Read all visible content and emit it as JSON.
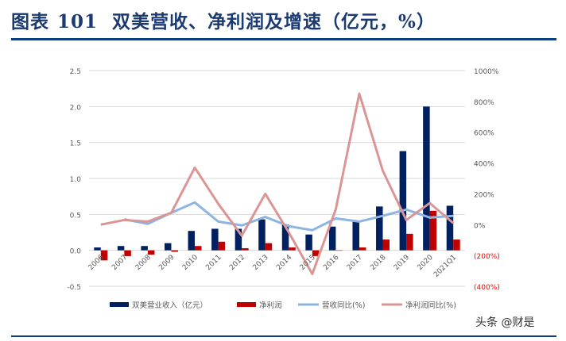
{
  "header": {
    "title_prefix": "图表",
    "title_number": "101",
    "title_text": "双美营收、净利润及增速（亿元，%）"
  },
  "watermark": "头条 @财是",
  "colors": {
    "revenue": "#002060",
    "profit": "#c00000",
    "revenue_growth": "#8db4e2",
    "profit_growth": "#d99694",
    "title": "#1b3a70",
    "negative_tick": "#ff0000"
  },
  "chart_data": {
    "type": "bar+line",
    "categories": [
      "2006",
      "2007",
      "2008",
      "2009",
      "2010",
      "2011",
      "2012",
      "2013",
      "2014",
      "2015",
      "2016",
      "2017",
      "2018",
      "2019",
      "2020",
      "2021Q1"
    ],
    "left_axis": {
      "ylim": [
        -0.5,
        2.5
      ],
      "ticks": [
        "2.5",
        "2.0",
        "1.5",
        "1.0",
        "0.5",
        "0.0",
        "-0.5"
      ],
      "tick_values": [
        2.5,
        2.0,
        1.5,
        1.0,
        0.5,
        0.0,
        -0.5
      ]
    },
    "right_axis": {
      "ylim": [
        -400,
        1000
      ],
      "ticks": [
        "1000%",
        "800%",
        "600%",
        "400%",
        "200%",
        "0%",
        "(200%)",
        "(400%)"
      ],
      "tick_values": [
        1000,
        800,
        600,
        400,
        200,
        0,
        -200,
        -400
      ]
    },
    "series": [
      {
        "name": "双美营业收入（亿元）",
        "type": "bar",
        "axis": "left",
        "values": [
          0.04,
          0.06,
          0.06,
          0.1,
          0.27,
          0.3,
          0.3,
          0.43,
          0.36,
          0.22,
          0.33,
          0.4,
          0.61,
          1.38,
          2.0,
          0.62
        ]
      },
      {
        "name": "净利润",
        "type": "bar",
        "axis": "left",
        "values": [
          -0.14,
          -0.08,
          -0.06,
          -0.02,
          0.06,
          0.12,
          0.03,
          0.1,
          0.04,
          -0.08,
          0.0,
          0.04,
          0.15,
          0.23,
          0.55,
          0.15
        ]
      },
      {
        "name": "营收同比(%)",
        "type": "line",
        "axis": "right",
        "values": [
          null,
          35,
          5,
          77,
          144,
          20,
          -5,
          50,
          -10,
          -36,
          40,
          20,
          57,
          98,
          46,
          57
        ]
      },
      {
        "name": "净利润同比(%)",
        "type": "line",
        "axis": "right",
        "values": [
          0,
          30,
          20,
          77,
          370,
          135,
          -72,
          200,
          -50,
          -320,
          100,
          850,
          350,
          30,
          140,
          10
        ]
      }
    ],
    "grid": true,
    "legend": "bottom"
  }
}
